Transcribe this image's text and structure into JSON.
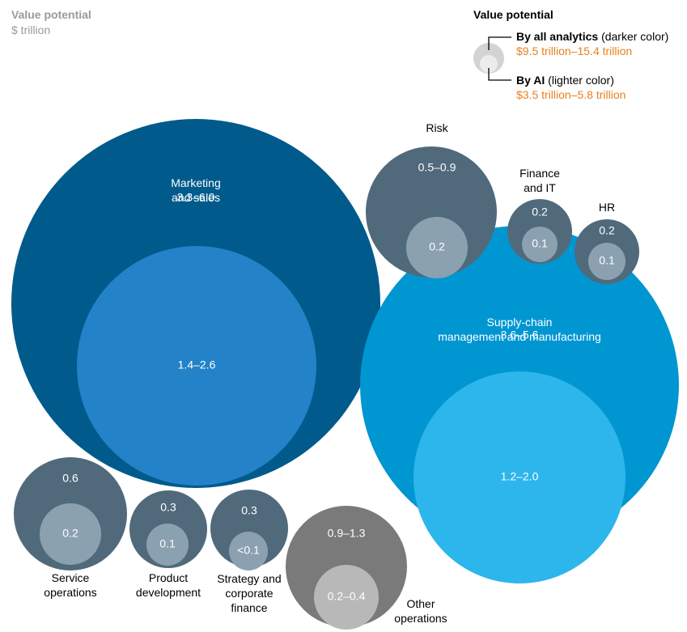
{
  "header": {
    "title": "Value potential",
    "unit": "$ trillion"
  },
  "legend": {
    "title": "Value potential",
    "analytics_label": "By all analytics",
    "analytics_note": "(darker color)",
    "analytics_value": "$9.5 trillion–15.4 trillion",
    "ai_label": "By AI",
    "ai_note": "(lighter color)",
    "ai_value": "$3.5 trillion–5.8 trillion"
  },
  "chart_data": {
    "type": "bubble",
    "title": "Value potential",
    "unit": "$ trillion",
    "series": [
      {
        "name": "Marketing and sales",
        "analytics_label": "3.3–6.0",
        "ai_label": "1.4–2.6",
        "analytics_value": [
          3.3,
          6.0
        ],
        "ai_value": [
          1.4,
          2.6
        ],
        "outer_color": "#005a8c",
        "inner_color": "#2382c8"
      },
      {
        "name": "Supply-chain management and manufacturing",
        "analytics_label": "3.6–5.6",
        "ai_label": "1.2–2.0",
        "analytics_value": [
          3.6,
          5.6
        ],
        "ai_value": [
          1.2,
          2.0
        ],
        "outer_color": "#0096d2",
        "inner_color": "#2cb6eb"
      },
      {
        "name": "Risk",
        "analytics_label": "0.5–0.9",
        "ai_label": "0.2",
        "analytics_value": [
          0.5,
          0.9
        ],
        "ai_value": 0.2,
        "outer_color": "#506a7c",
        "inner_color": "#8ba1b0"
      },
      {
        "name": "Finance and IT",
        "analytics_label": "0.2",
        "ai_label": "0.1",
        "analytics_value": 0.2,
        "ai_value": 0.1,
        "outer_color": "#506a7c",
        "inner_color": "#8ba1b0"
      },
      {
        "name": "HR",
        "analytics_label": "0.2",
        "ai_label": "0.1",
        "analytics_value": 0.2,
        "ai_value": 0.1,
        "outer_color": "#506a7c",
        "inner_color": "#8ba1b0"
      },
      {
        "name": "Service operations",
        "analytics_label": "0.6",
        "ai_label": "0.2",
        "analytics_value": 0.6,
        "ai_value": 0.2,
        "outer_color": "#506a7c",
        "inner_color": "#8ba1b0"
      },
      {
        "name": "Product development",
        "analytics_label": "0.3",
        "ai_label": "0.1",
        "analytics_value": 0.3,
        "ai_value": 0.1,
        "outer_color": "#506a7c",
        "inner_color": "#8ba1b0"
      },
      {
        "name": "Strategy and corporate finance",
        "analytics_label": "0.3",
        "ai_label": "<0.1",
        "analytics_value": 0.3,
        "ai_value": "<0.1",
        "outer_color": "#506a7c",
        "inner_color": "#8ba1b0"
      },
      {
        "name": "Other operations",
        "analytics_label": "0.9–1.3",
        "ai_label": "0.2–0.4",
        "analytics_value": [
          0.9,
          1.3
        ],
        "ai_value": [
          0.2,
          0.4
        ],
        "outer_color": "#7a7a7a",
        "inner_color": "#b8b8b8"
      }
    ]
  }
}
